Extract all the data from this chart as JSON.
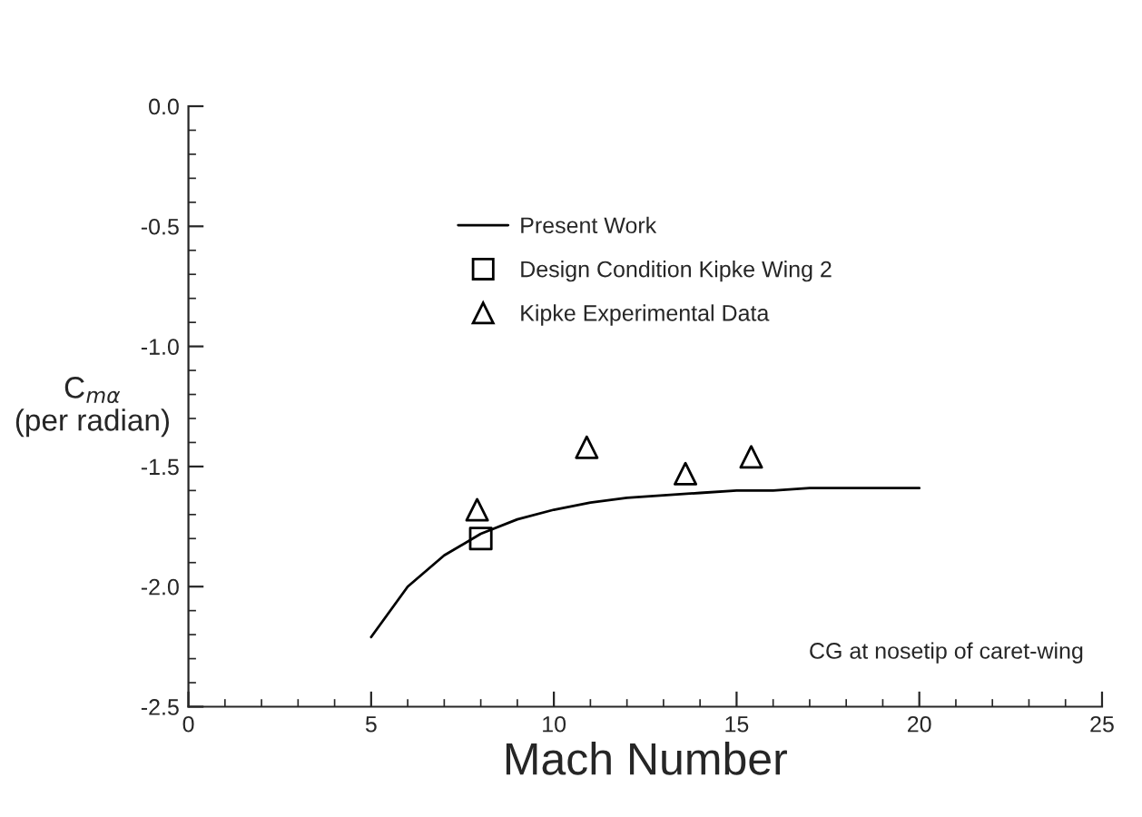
{
  "chart_data": {
    "type": "line",
    "xlabel": "Mach Number",
    "ylabel": "C$_{mα}$\n(per radian)",
    "xlim": [
      0,
      25
    ],
    "xticks": [
      0,
      5,
      10,
      15,
      20,
      25
    ],
    "ylim": [
      -2.5,
      0
    ],
    "yticks": [
      {
        "value": -2.5,
        "label": "-2.5"
      },
      {
        "value": -2.0,
        "label": "-2.0"
      },
      {
        "value": -1.5,
        "label": "-1.5"
      },
      {
        "value": -1.0,
        "label": "-1.0"
      },
      {
        "value": -0.5,
        "label": "-0.5"
      },
      {
        "value": 0,
        "label": "0.0"
      }
    ],
    "series": [
      {
        "name": "Present Work",
        "color": "#000000",
        "marker": "none",
        "line_style": "solid",
        "x": [
          5,
          6,
          7,
          8,
          9,
          10,
          11,
          12,
          13,
          14,
          15,
          16,
          17,
          18,
          19,
          20
        ],
        "values": [
          -2.21,
          -2.0,
          -1.87,
          -1.78,
          -1.72,
          -1.68,
          -1.65,
          -1.63,
          -1.62,
          -1.61,
          -1.6,
          -1.6,
          -1.59,
          -1.59,
          -1.59,
          -1.59
        ]
      },
      {
        "name": "Design Condition Kipke Wing 2",
        "type": "scatter",
        "color": "#000000",
        "marker": "square",
        "x": [
          8.0
        ],
        "values": [
          -1.8
        ]
      },
      {
        "name": "Kipke Experimental Data",
        "type": "scatter",
        "color": "#000000",
        "marker": "triangle",
        "x": [
          7.9,
          10.9,
          13.6,
          15.4
        ],
        "values": [
          -1.68,
          -1.42,
          -1.53,
          -1.46
        ]
      }
    ],
    "annotations": [
      "CG at nosetip of caret-wing"
    ],
    "legend": "top",
    "grid": false
  }
}
